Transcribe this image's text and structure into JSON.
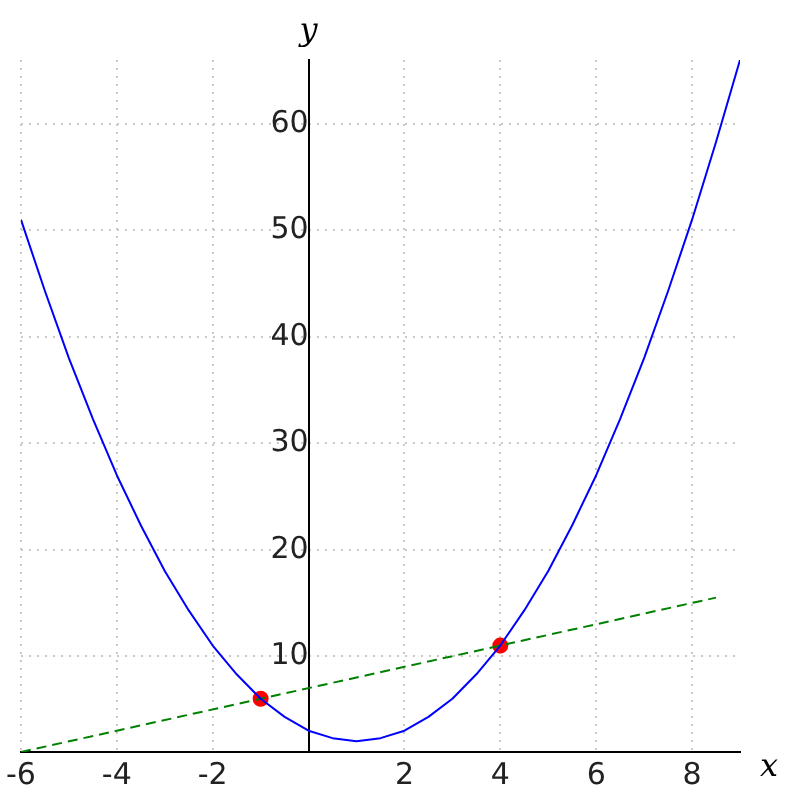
{
  "chart_data": {
    "type": "line",
    "xlabel": "x",
    "ylabel": "y",
    "xlim": [
      -6,
      9
    ],
    "ylim": [
      1,
      66
    ],
    "xticks": [
      -6,
      -4,
      -2,
      2,
      4,
      6,
      8
    ],
    "yticks": [
      10,
      20,
      30,
      40,
      50,
      60
    ],
    "grid": true,
    "series": [
      {
        "type": "line",
        "color": "#0000ff",
        "marker": "none",
        "line_style": "solid",
        "x": [
          -6,
          -5.5,
          -5,
          -4.5,
          -4,
          -3.5,
          -3,
          -2.5,
          -2,
          -1.5,
          -1,
          -0.5,
          0,
          0.5,
          1,
          1.5,
          2,
          2.5,
          3,
          3.5,
          4,
          4.5,
          5,
          5.5,
          6,
          6.5,
          7,
          7.5,
          8,
          8.5,
          9
        ],
        "values": [
          51,
          44.3,
          38,
          32.3,
          27,
          22.3,
          18,
          14.3,
          11,
          8.3,
          6,
          4.3,
          3,
          2.3,
          2,
          2.3,
          3,
          4.3,
          6,
          8.3,
          11,
          14.3,
          18,
          22.3,
          27,
          32.3,
          38,
          44.3,
          51,
          58.3,
          66
        ]
      },
      {
        "type": "line",
        "color": "#008000",
        "marker": "none",
        "line_style": "dashed",
        "x": [
          -6,
          8.5
        ],
        "values": [
          1,
          15.5
        ]
      },
      {
        "type": "scatter",
        "color": "#ff0000",
        "marker": "circle",
        "x": [
          -1,
          4
        ],
        "values": [
          6,
          11
        ]
      }
    ]
  }
}
